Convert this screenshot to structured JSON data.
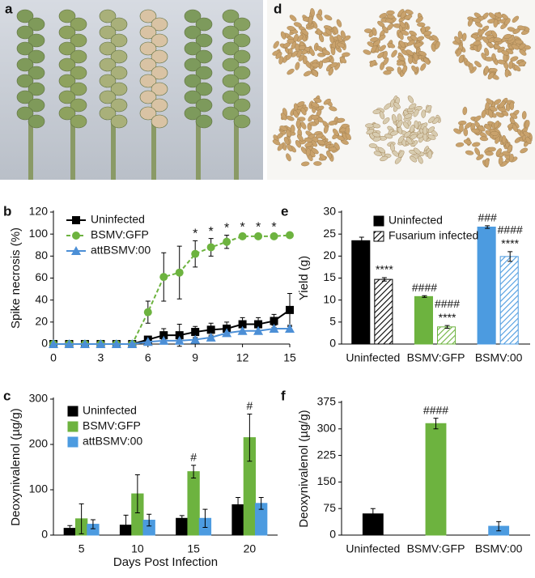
{
  "photo_labels": [
    "a",
    "d"
  ],
  "chart_data": [
    {
      "type": "line",
      "panel": "b",
      "ylabel": "Spike necrosis (%)",
      "x": [
        0,
        1,
        2,
        3,
        4,
        5,
        6,
        7,
        8,
        9,
        10,
        11,
        12,
        13,
        14,
        15
      ],
      "xlim": [
        0,
        15
      ],
      "xticks": [
        0,
        3,
        6,
        9,
        12,
        15
      ],
      "ylim": [
        0,
        120
      ],
      "yticks": [
        0,
        20,
        40,
        60,
        80,
        100,
        120
      ],
      "series": [
        {
          "name": "Uninfected",
          "color": "#000000",
          "marker": "square",
          "dash": false,
          "values": [
            0,
            0,
            0,
            0,
            0,
            0,
            4,
            8,
            8,
            11,
            13,
            14,
            18,
            18,
            21,
            31
          ],
          "errors": [
            0,
            0,
            0,
            0,
            0,
            0,
            3,
            6,
            10,
            5,
            6,
            6,
            6,
            6,
            6,
            15
          ]
        },
        {
          "name": "BSMV:GFP",
          "color": "#6db33f",
          "marker": "circle",
          "dash": true,
          "values": [
            0,
            0,
            0,
            0,
            0,
            0,
            29,
            61,
            65,
            82,
            88,
            93,
            98,
            98,
            98,
            99
          ],
          "errors": [
            0,
            0,
            0,
            0,
            0,
            0,
            10,
            22,
            24,
            12,
            8,
            6,
            2,
            2,
            2,
            2
          ]
        },
        {
          "name": "attBSMV:00",
          "color": "#4c8fd6",
          "marker": "triangle",
          "dash": false,
          "values": [
            0,
            0,
            0,
            0,
            0,
            0,
            2,
            3,
            3,
            4,
            6,
            10,
            12,
            12,
            14,
            14
          ],
          "errors": [
            0,
            0,
            0,
            0,
            0,
            0,
            1,
            1,
            1,
            1,
            2,
            3,
            3,
            3,
            3,
            3
          ]
        }
      ],
      "annotations": [
        {
          "x": 9,
          "text": "*"
        },
        {
          "x": 10,
          "text": "*"
        },
        {
          "x": 11,
          "text": "*"
        },
        {
          "x": 12,
          "text": "*"
        },
        {
          "x": 13,
          "text": "*"
        },
        {
          "x": 14,
          "text": "*"
        }
      ]
    },
    {
      "type": "bar",
      "panel": "c",
      "ylabel": "Deoxynivalenol (µg/g)",
      "xlabel": "Days Post Infection",
      "categories": [
        "5",
        "10",
        "15",
        "20"
      ],
      "ylim": [
        0,
        300
      ],
      "yticks": [
        0,
        100,
        200,
        300
      ],
      "series": [
        {
          "name": "Uninfected",
          "color": "#000000",
          "values": [
            15,
            22,
            37,
            67
          ],
          "errors": [
            6,
            22,
            6,
            16
          ]
        },
        {
          "name": "BSMV:GFP",
          "color": "#6db33f",
          "values": [
            36,
            91,
            140,
            215
          ],
          "errors": [
            33,
            42,
            14,
            52
          ],
          "annotations": [
            null,
            null,
            "#",
            "#"
          ]
        },
        {
          "name": "attBSMV:00",
          "color": "#4c9be0",
          "values": [
            24,
            33,
            37,
            70
          ],
          "errors": [
            10,
            13,
            20,
            13
          ]
        }
      ]
    },
    {
      "type": "bar",
      "panel": "e",
      "ylabel": "Yield (g)",
      "categories": [
        "Uninfected",
        "BSMV:GFP",
        "BSMV:00"
      ],
      "ylim": [
        0,
        30
      ],
      "yticks": [
        0,
        5,
        10,
        15,
        20,
        25,
        30
      ],
      "series": [
        {
          "name": "Uninfected",
          "colors": [
            "#000000",
            "#6db33f",
            "#4c9be0"
          ],
          "hatch": false,
          "values": [
            23.5,
            10.8,
            26.6
          ],
          "errors": [
            0.8,
            0.2,
            0.3
          ],
          "annotations": [
            null,
            [
              "####"
            ],
            [
              "###"
            ]
          ]
        },
        {
          "name": "Fusarium infected",
          "colors": [
            "#000000",
            "#6db33f",
            "#4c9be0"
          ],
          "hatch": true,
          "values": [
            14.7,
            3.9,
            19.9
          ],
          "errors": [
            0.4,
            0.3,
            1.1
          ],
          "annotations": [
            [
              "****"
            ],
            [
              "####",
              "****"
            ],
            [
              "####",
              "****"
            ]
          ]
        }
      ]
    },
    {
      "type": "bar",
      "panel": "f",
      "ylabel": "Deoxynivalenol (µg/g)",
      "categories": [
        "Uninfected",
        "BSMV:GFP",
        "BSMV:00"
      ],
      "ylim": [
        0,
        375
      ],
      "yticks": [
        0,
        75,
        150,
        225,
        300,
        375
      ],
      "series": [
        {
          "colors": [
            "#000000",
            "#6db33f",
            "#4c9be0"
          ],
          "hatch": false,
          "values": [
            60,
            315,
            25
          ],
          "errors": [
            15,
            15,
            13
          ],
          "annotations": [
            null,
            [
              "####"
            ],
            null
          ]
        }
      ]
    }
  ]
}
